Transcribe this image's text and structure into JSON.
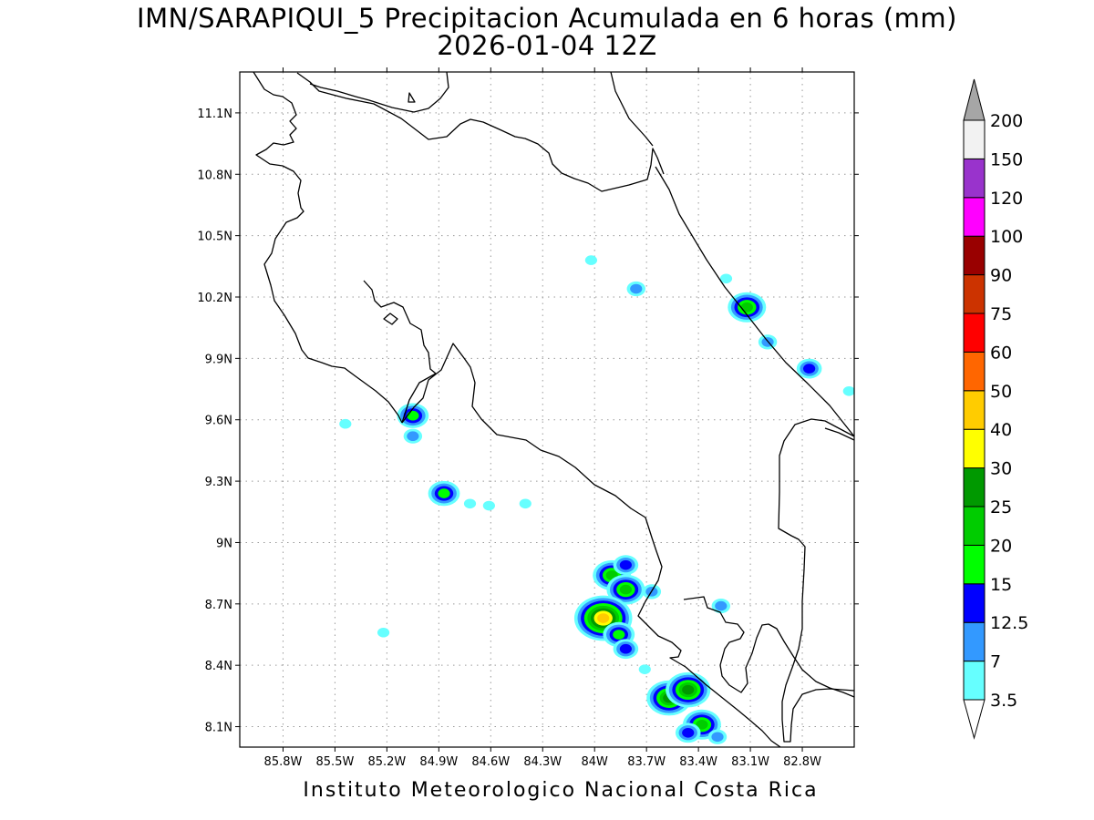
{
  "title": {
    "line1": "IMN/SARAPIQUI_5 Precipitacion Acumulada en 6 horas (mm)",
    "line2": "2026-01-04 12Z"
  },
  "footer": "Instituto Meteorologico Nacional Costa Rica",
  "map": {
    "lon_range": [
      -86.05,
      -82.5
    ],
    "lat_range": [
      8.0,
      11.3
    ],
    "grid": true,
    "x_ticks": [
      {
        "lon": -85.8,
        "label": "85.8W"
      },
      {
        "lon": -85.5,
        "label": "85.5W"
      },
      {
        "lon": -85.2,
        "label": "85.2W"
      },
      {
        "lon": -84.9,
        "label": "84.9W"
      },
      {
        "lon": -84.6,
        "label": "84.6W"
      },
      {
        "lon": -84.3,
        "label": "84.3W"
      },
      {
        "lon": -84.0,
        "label": "84W"
      },
      {
        "lon": -83.7,
        "label": "83.7W"
      },
      {
        "lon": -83.4,
        "label": "83.4W"
      },
      {
        "lon": -83.1,
        "label": "83.1W"
      },
      {
        "lon": -82.8,
        "label": "82.8W"
      }
    ],
    "y_ticks": [
      {
        "lat": 11.1,
        "label": "11.1N"
      },
      {
        "lat": 10.8,
        "label": "10.8N"
      },
      {
        "lat": 10.5,
        "label": "10.5N"
      },
      {
        "lat": 10.2,
        "label": "10.2N"
      },
      {
        "lat": 9.9,
        "label": "9.9N"
      },
      {
        "lat": 9.6,
        "label": "9.6N"
      },
      {
        "lat": 9.3,
        "label": "9.3N"
      },
      {
        "lat": 9.0,
        "label": "9N"
      },
      {
        "lat": 8.7,
        "label": "8.7N"
      },
      {
        "lat": 8.4,
        "label": "8.4N"
      },
      {
        "lat": 8.1,
        "label": "8.1N"
      }
    ],
    "precip_cells": [
      {
        "lon": -83.12,
        "lat": 10.15,
        "level": 5
      },
      {
        "lon": -83.0,
        "lat": 9.98,
        "level": 2
      },
      {
        "lon": -82.76,
        "lat": 9.85,
        "level": 3
      },
      {
        "lon": -82.53,
        "lat": 9.74,
        "level": 1
      },
      {
        "lon": -83.76,
        "lat": 10.24,
        "level": 2
      },
      {
        "lon": -84.02,
        "lat": 10.38,
        "level": 1
      },
      {
        "lon": -83.24,
        "lat": 10.29,
        "level": 1
      },
      {
        "lon": -85.05,
        "lat": 9.62,
        "level": 4
      },
      {
        "lon": -85.05,
        "lat": 9.52,
        "level": 2
      },
      {
        "lon": -85.44,
        "lat": 9.58,
        "level": 1
      },
      {
        "lon": -84.87,
        "lat": 9.24,
        "level": 4
      },
      {
        "lon": -84.4,
        "lat": 9.19,
        "level": 1
      },
      {
        "lon": -84.61,
        "lat": 9.18,
        "level": 1
      },
      {
        "lon": -84.72,
        "lat": 9.19,
        "level": 1
      },
      {
        "lon": -85.22,
        "lat": 8.56,
        "level": 1
      },
      {
        "lon": -83.9,
        "lat": 8.84,
        "level": 5
      },
      {
        "lon": -83.82,
        "lat": 8.77,
        "level": 5
      },
      {
        "lon": -83.82,
        "lat": 8.89,
        "level": 3
      },
      {
        "lon": -83.95,
        "lat": 8.63,
        "level": 8
      },
      {
        "lon": -83.86,
        "lat": 8.55,
        "level": 4
      },
      {
        "lon": -83.82,
        "lat": 8.48,
        "level": 3
      },
      {
        "lon": -83.67,
        "lat": 8.76,
        "level": 2
      },
      {
        "lon": -83.27,
        "lat": 8.69,
        "level": 2
      },
      {
        "lon": -83.71,
        "lat": 8.38,
        "level": 1
      },
      {
        "lon": -83.57,
        "lat": 8.24,
        "level": 6
      },
      {
        "lon": -83.46,
        "lat": 8.28,
        "level": 6
      },
      {
        "lon": -83.38,
        "lat": 8.11,
        "level": 5
      },
      {
        "lon": -83.46,
        "lat": 8.07,
        "level": 3
      },
      {
        "lon": -83.29,
        "lat": 8.05,
        "level": 2
      }
    ]
  },
  "colorbar": {
    "labels": [
      "3.5",
      "7",
      "12.5",
      "15",
      "20",
      "25",
      "30",
      "40",
      "50",
      "60",
      "75",
      "90",
      "100",
      "120",
      "150",
      "200"
    ],
    "colors": [
      "#66ffff",
      "#3399ff",
      "#0000ff",
      "#00ff00",
      "#00cc00",
      "#009900",
      "#ffff00",
      "#ffcc00",
      "#ff6600",
      "#ff0000",
      "#cc3300",
      "#990000",
      "#ff00ff",
      "#9933cc",
      "#f2f2f2"
    ],
    "top_arrow_color": "#a6a6a6",
    "bottom_arrow_color": "#ffffff"
  }
}
